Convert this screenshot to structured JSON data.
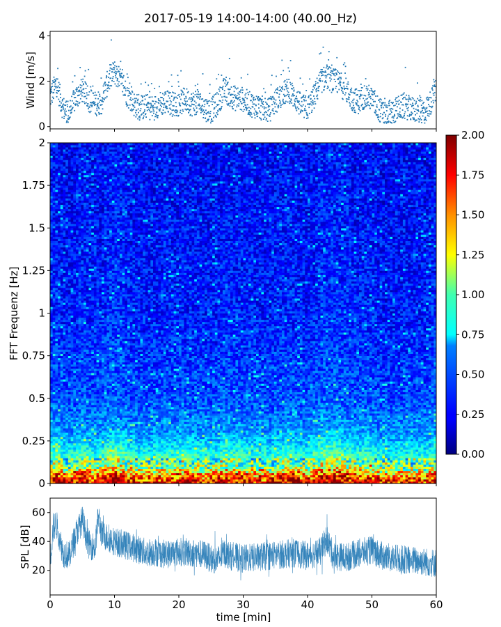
{
  "figure": {
    "title": "2017-05-19 14:00-14:00 (40.00_Hz)"
  },
  "chart_data": [
    {
      "type": "scatter",
      "panel": "wind",
      "ylabel": "Wind [m/s]",
      "xlim": [
        0,
        60
      ],
      "ylim": [
        -0.1,
        4.2
      ],
      "yticks": [
        0,
        2,
        4
      ],
      "color": "#1f77b4",
      "x_range_min": [
        0,
        60
      ],
      "wind_levels": [
        {
          "x": 0,
          "y": 1.3
        },
        {
          "x": 1,
          "y": 1.9
        },
        {
          "x": 2,
          "y": 0.8
        },
        {
          "x": 3,
          "y": 0.6
        },
        {
          "x": 4,
          "y": 1.3
        },
        {
          "x": 5,
          "y": 1.6
        },
        {
          "x": 6,
          "y": 1.2
        },
        {
          "x": 7,
          "y": 1.0
        },
        {
          "x": 8,
          "y": 1.1
        },
        {
          "x": 9,
          "y": 2.0
        },
        {
          "x": 10,
          "y": 2.4
        },
        {
          "x": 11,
          "y": 2.0
        },
        {
          "x": 12,
          "y": 1.4
        },
        {
          "x": 13,
          "y": 1.0
        },
        {
          "x": 14,
          "y": 0.8
        },
        {
          "x": 15,
          "y": 0.9
        },
        {
          "x": 16,
          "y": 0.8
        },
        {
          "x": 17,
          "y": 1.0
        },
        {
          "x": 18,
          "y": 1.1
        },
        {
          "x": 19,
          "y": 1.0
        },
        {
          "x": 20,
          "y": 1.0
        },
        {
          "x": 21,
          "y": 1.2
        },
        {
          "x": 22,
          "y": 1.0
        },
        {
          "x": 23,
          "y": 1.1
        },
        {
          "x": 24,
          "y": 0.8
        },
        {
          "x": 25,
          "y": 0.7
        },
        {
          "x": 26,
          "y": 1.0
        },
        {
          "x": 27,
          "y": 1.6
        },
        {
          "x": 28,
          "y": 1.4
        },
        {
          "x": 29,
          "y": 1.2
        },
        {
          "x": 30,
          "y": 1.2
        },
        {
          "x": 31,
          "y": 1.0
        },
        {
          "x": 32,
          "y": 0.9
        },
        {
          "x": 33,
          "y": 0.8
        },
        {
          "x": 34,
          "y": 0.7
        },
        {
          "x": 35,
          "y": 1.1
        },
        {
          "x": 36,
          "y": 1.4
        },
        {
          "x": 37,
          "y": 1.6
        },
        {
          "x": 38,
          "y": 1.3
        },
        {
          "x": 39,
          "y": 0.9
        },
        {
          "x": 40,
          "y": 0.8
        },
        {
          "x": 41,
          "y": 1.3
        },
        {
          "x": 42,
          "y": 2.0
        },
        {
          "x": 43,
          "y": 2.2
        },
        {
          "x": 44,
          "y": 2.0
        },
        {
          "x": 45,
          "y": 1.9
        },
        {
          "x": 46,
          "y": 1.6
        },
        {
          "x": 47,
          "y": 1.2
        },
        {
          "x": 48,
          "y": 1.1
        },
        {
          "x": 49,
          "y": 1.4
        },
        {
          "x": 50,
          "y": 1.2
        },
        {
          "x": 51,
          "y": 0.8
        },
        {
          "x": 52,
          "y": 0.5
        },
        {
          "x": 53,
          "y": 0.6
        },
        {
          "x": 54,
          "y": 0.8
        },
        {
          "x": 55,
          "y": 0.9
        },
        {
          "x": 56,
          "y": 0.8
        },
        {
          "x": 57,
          "y": 0.7
        },
        {
          "x": 58,
          "y": 0.6
        },
        {
          "x": 59,
          "y": 1.0
        },
        {
          "x": 60,
          "y": 1.6
        }
      ]
    },
    {
      "type": "heatmap",
      "panel": "spectrogram",
      "ylabel": "FFT Frequenz [Hz]",
      "xlim": [
        0,
        60
      ],
      "ylim": [
        0,
        2
      ],
      "yticks": [
        0,
        0.25,
        0.5,
        0.75,
        1,
        1.25,
        1.5,
        1.75,
        2
      ],
      "yticklabels": [
        "0",
        "0.25",
        "0.5",
        "0.75",
        "1",
        "1.25",
        "1.5",
        "1.75",
        "2"
      ],
      "colormap": "jet",
      "color_range": [
        0,
        2
      ],
      "colorbar_ticks": [
        "0.00",
        "0.25",
        "0.50",
        "0.75",
        "1.00",
        "1.25",
        "1.50",
        "1.75",
        "2.00"
      ],
      "colorbar_tick_values": [
        0,
        0.25,
        0.5,
        0.75,
        1.0,
        1.25,
        1.5,
        1.75,
        2.0
      ],
      "typical_level_by_frequency": [
        {
          "f": 0.0,
          "level": 1.8
        },
        {
          "f": 0.05,
          "level": 1.5
        },
        {
          "f": 0.1,
          "level": 1.0
        },
        {
          "f": 0.2,
          "level": 0.75
        },
        {
          "f": 0.3,
          "level": 0.55
        },
        {
          "f": 0.5,
          "level": 0.4
        },
        {
          "f": 1.0,
          "level": 0.3
        },
        {
          "f": 2.0,
          "level": 0.25
        }
      ]
    },
    {
      "type": "line",
      "panel": "spl",
      "ylabel": "SPL [dB]",
      "xlabel": "time [min]",
      "xlim": [
        0,
        60
      ],
      "ylim": [
        3,
        70
      ],
      "yticks": [
        20,
        40,
        60
      ],
      "xticks": [
        0,
        10,
        20,
        30,
        40,
        50,
        60
      ],
      "color": "#1f77b4",
      "x": [
        0,
        0.5,
        1,
        2,
        3,
        4,
        5,
        6,
        7,
        7.5,
        8,
        10,
        12,
        14,
        15,
        16,
        18,
        20,
        22,
        24,
        25,
        26,
        27,
        28,
        30,
        32,
        34,
        36,
        38,
        40,
        42,
        43,
        44,
        46,
        48,
        50,
        52,
        54,
        56,
        58,
        60
      ],
      "y": [
        28,
        50,
        52,
        32,
        30,
        45,
        55,
        38,
        36,
        58,
        45,
        40,
        37,
        34,
        32,
        33,
        31,
        33,
        32,
        31,
        28,
        27,
        32,
        30,
        28,
        29,
        30,
        31,
        32,
        30,
        33,
        42,
        30,
        29,
        32,
        34,
        29,
        28,
        27,
        26,
        25
      ]
    }
  ]
}
